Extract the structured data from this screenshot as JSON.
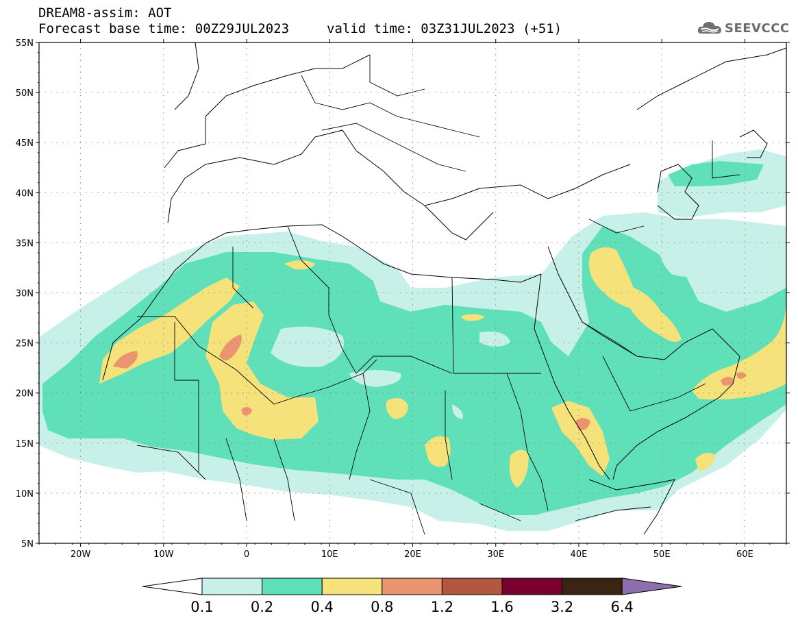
{
  "title": {
    "line1": "DREAM8-assim: AOT",
    "line2_base": "Forecast base time: 00Z29JUL2023",
    "line2_valid": "valid time: 03Z31JUL2023 (+51)"
  },
  "logo": {
    "icon": "cloud-logo-icon",
    "text": "SEEVCCC"
  },
  "map": {
    "projection": "cylindrical",
    "lon_range": [
      -25,
      65
    ],
    "lat_range": [
      5,
      55
    ],
    "grid": true,
    "lat_ticks": [
      "55N",
      "50N",
      "45N",
      "40N",
      "35N",
      "30N",
      "25N",
      "20N",
      "15N",
      "10N",
      "5N"
    ],
    "lon_ticks": [
      "20W",
      "10W",
      "0",
      "10E",
      "20E",
      "30E",
      "40E",
      "50E",
      "60E"
    ]
  },
  "colors": {
    "c1": "#c6f0e8",
    "c2": "#5fe0b8",
    "c3": "#f5e27a",
    "c4": "#ea9470",
    "c5": "#b25840",
    "c6": "#7a0030",
    "c7": "#3a2412",
    "c8": "#8e6fae"
  },
  "colorbar": {
    "labels": [
      "0.1",
      "0.2",
      "0.4",
      "0.8",
      "1.2",
      "1.6",
      "3.2",
      "6.4"
    ]
  }
}
